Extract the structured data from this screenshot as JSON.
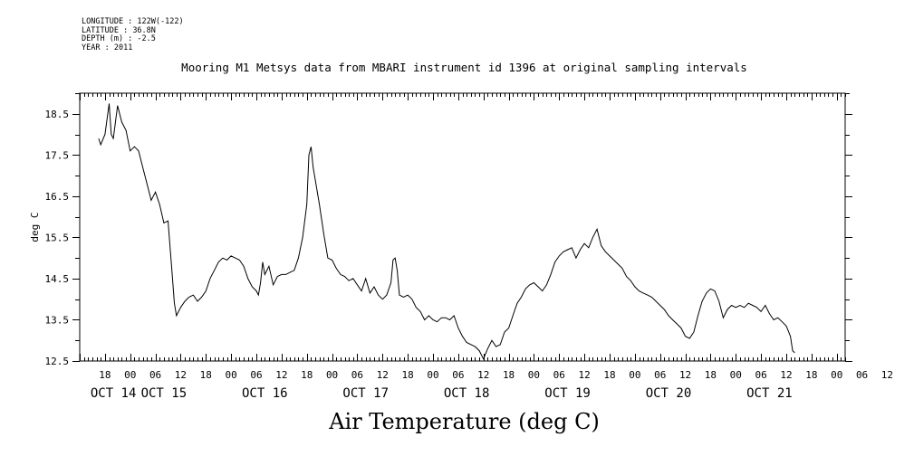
{
  "metadata": [
    {
      "label": "LONGITUDE",
      "value": "122W(-122)"
    },
    {
      "label": "LATITUDE",
      "value": "36.8N"
    },
    {
      "label": "DEPTH (m)",
      "value": "-2.5"
    },
    {
      "label": "YEAR",
      "value": "2011"
    }
  ],
  "footer_title": "Air Temperature (deg C)",
  "chart_data": {
    "type": "line",
    "title": "Mooring M1 Metsys data from MBARI instrument id 1396 at original sampling intervals",
    "xlabel": "",
    "ylabel": "deg C",
    "ylim": [
      12.5,
      19.0
    ],
    "xlim_hours": [
      0,
      182
    ],
    "y_ticks": [
      12.5,
      13.5,
      14.5,
      15.5,
      16.5,
      17.5,
      18.5
    ],
    "y_tick_labels": [
      "12.5",
      "13.5",
      "14.5",
      "15.5",
      "16.5",
      "17.5",
      "18.5"
    ],
    "x_hour_labels": [
      "18",
      "00",
      "06",
      "12",
      "18",
      "00",
      "06",
      "12",
      "18",
      "00",
      "06",
      "12",
      "18",
      "00",
      "06",
      "12",
      "18",
      "00",
      "06",
      "12",
      "18",
      "00",
      "06",
      "12",
      "18",
      "00",
      "06",
      "12",
      "18",
      "00",
      "06",
      "12"
    ],
    "x_day_labels": [
      "OCT 14",
      "OCT 15",
      "OCT 16",
      "OCT 17",
      "OCT 18",
      "OCT 19",
      "OCT 20",
      "OCT 21"
    ],
    "grid": false,
    "series": [
      {
        "points": [
          [
            "2011-10-14 16:30",
            17.9
          ],
          [
            "2011-10-14 17:00",
            17.75
          ],
          [
            "2011-10-14 18:00",
            18.0
          ],
          [
            "2011-10-14 19:00",
            18.75
          ],
          [
            "2011-10-14 19:30",
            18.0
          ],
          [
            "2011-10-14 20:00",
            17.9
          ],
          [
            "2011-10-14 21:00",
            18.7
          ],
          [
            "2011-10-14 22:00",
            18.3
          ],
          [
            "2011-10-14 23:00",
            18.1
          ],
          [
            "2011-10-15 00:00",
            17.6
          ],
          [
            "2011-10-15 01:00",
            17.7
          ],
          [
            "2011-10-15 02:00",
            17.6
          ],
          [
            "2011-10-15 03:00",
            17.2
          ],
          [
            "2011-10-15 04:00",
            16.8
          ],
          [
            "2011-10-15 05:00",
            16.4
          ],
          [
            "2011-10-15 06:00",
            16.6
          ],
          [
            "2011-10-15 07:00",
            16.3
          ],
          [
            "2011-10-15 08:00",
            15.85
          ],
          [
            "2011-10-15 09:00",
            15.9
          ],
          [
            "2011-10-15 10:00",
            14.6
          ],
          [
            "2011-10-15 10:30",
            13.9
          ],
          [
            "2011-10-15 11:00",
            13.6
          ],
          [
            "2011-10-15 12:00",
            13.8
          ],
          [
            "2011-10-15 13:00",
            13.95
          ],
          [
            "2011-10-15 14:00",
            14.05
          ],
          [
            "2011-10-15 15:00",
            14.1
          ],
          [
            "2011-10-15 16:00",
            13.95
          ],
          [
            "2011-10-15 17:00",
            14.05
          ],
          [
            "2011-10-15 18:00",
            14.2
          ],
          [
            "2011-10-15 19:00",
            14.5
          ],
          [
            "2011-10-15 20:00",
            14.7
          ],
          [
            "2011-10-15 21:00",
            14.9
          ],
          [
            "2011-10-15 22:00",
            15.0
          ],
          [
            "2011-10-15 23:00",
            14.95
          ],
          [
            "2011-10-16 00:00",
            15.05
          ],
          [
            "2011-10-16 01:00",
            15.0
          ],
          [
            "2011-10-16 02:00",
            14.95
          ],
          [
            "2011-10-16 03:00",
            14.8
          ],
          [
            "2011-10-16 04:00",
            14.5
          ],
          [
            "2011-10-16 05:00",
            14.3
          ],
          [
            "2011-10-16 06:00",
            14.2
          ],
          [
            "2011-10-16 06:30",
            14.1
          ],
          [
            "2011-10-16 07:00",
            14.4
          ],
          [
            "2011-10-16 07:30",
            14.9
          ],
          [
            "2011-10-16 08:00",
            14.6
          ],
          [
            "2011-10-16 09:00",
            14.8
          ],
          [
            "2011-10-16 10:00",
            14.35
          ],
          [
            "2011-10-16 11:00",
            14.55
          ],
          [
            "2011-10-16 12:00",
            14.6
          ],
          [
            "2011-10-16 13:00",
            14.6
          ],
          [
            "2011-10-16 14:00",
            14.65
          ],
          [
            "2011-10-16 15:00",
            14.7
          ],
          [
            "2011-10-16 16:00",
            15.0
          ],
          [
            "2011-10-16 17:00",
            15.5
          ],
          [
            "2011-10-16 18:00",
            16.3
          ],
          [
            "2011-10-16 18:30",
            17.5
          ],
          [
            "2011-10-16 19:00",
            17.7
          ],
          [
            "2011-10-16 19:30",
            17.2
          ],
          [
            "2011-10-16 20:00",
            16.9
          ],
          [
            "2011-10-16 21:00",
            16.3
          ],
          [
            "2011-10-16 22:00",
            15.6
          ],
          [
            "2011-10-16 23:00",
            15.0
          ],
          [
            "2011-10-17 00:00",
            14.95
          ],
          [
            "2011-10-17 01:00",
            14.75
          ],
          [
            "2011-10-17 02:00",
            14.6
          ],
          [
            "2011-10-17 03:00",
            14.55
          ],
          [
            "2011-10-17 04:00",
            14.45
          ],
          [
            "2011-10-17 05:00",
            14.5
          ],
          [
            "2011-10-17 06:00",
            14.35
          ],
          [
            "2011-10-17 07:00",
            14.2
          ],
          [
            "2011-10-17 08:00",
            14.5
          ],
          [
            "2011-10-17 09:00",
            14.15
          ],
          [
            "2011-10-17 10:00",
            14.3
          ],
          [
            "2011-10-17 11:00",
            14.1
          ],
          [
            "2011-10-17 12:00",
            14.0
          ],
          [
            "2011-10-17 13:00",
            14.1
          ],
          [
            "2011-10-17 14:00",
            14.4
          ],
          [
            "2011-10-17 14:30",
            14.95
          ],
          [
            "2011-10-17 15:00",
            15.0
          ],
          [
            "2011-10-17 15:30",
            14.7
          ],
          [
            "2011-10-17 16:00",
            14.1
          ],
          [
            "2011-10-17 17:00",
            14.05
          ],
          [
            "2011-10-17 18:00",
            14.1
          ],
          [
            "2011-10-17 19:00",
            14.0
          ],
          [
            "2011-10-17 20:00",
            13.8
          ],
          [
            "2011-10-17 21:00",
            13.7
          ],
          [
            "2011-10-17 22:00",
            13.5
          ],
          [
            "2011-10-17 23:00",
            13.6
          ],
          [
            "2011-10-18 00:00",
            13.5
          ],
          [
            "2011-10-18 01:00",
            13.45
          ],
          [
            "2011-10-18 02:00",
            13.55
          ],
          [
            "2011-10-18 03:00",
            13.55
          ],
          [
            "2011-10-18 04:00",
            13.5
          ],
          [
            "2011-10-18 05:00",
            13.6
          ],
          [
            "2011-10-18 06:00",
            13.3
          ],
          [
            "2011-10-18 07:00",
            13.1
          ],
          [
            "2011-10-18 08:00",
            12.95
          ],
          [
            "2011-10-18 09:00",
            12.9
          ],
          [
            "2011-10-18 10:00",
            12.85
          ],
          [
            "2011-10-18 11:00",
            12.75
          ],
          [
            "2011-10-18 12:00",
            12.55
          ],
          [
            "2011-10-18 13:00",
            12.8
          ],
          [
            "2011-10-18 14:00",
            13.0
          ],
          [
            "2011-10-18 15:00",
            12.85
          ],
          [
            "2011-10-18 16:00",
            12.9
          ],
          [
            "2011-10-18 17:00",
            13.2
          ],
          [
            "2011-10-18 18:00",
            13.3
          ],
          [
            "2011-10-18 19:00",
            13.6
          ],
          [
            "2011-10-18 20:00",
            13.9
          ],
          [
            "2011-10-18 21:00",
            14.05
          ],
          [
            "2011-10-18 22:00",
            14.25
          ],
          [
            "2011-10-18 23:00",
            14.35
          ],
          [
            "2011-10-19 00:00",
            14.4
          ],
          [
            "2011-10-19 01:00",
            14.3
          ],
          [
            "2011-10-19 02:00",
            14.2
          ],
          [
            "2011-10-19 03:00",
            14.35
          ],
          [
            "2011-10-19 04:00",
            14.6
          ],
          [
            "2011-10-19 05:00",
            14.9
          ],
          [
            "2011-10-19 06:00",
            15.05
          ],
          [
            "2011-10-19 07:00",
            15.15
          ],
          [
            "2011-10-19 08:00",
            15.2
          ],
          [
            "2011-10-19 09:00",
            15.25
          ],
          [
            "2011-10-19 10:00",
            15.0
          ],
          [
            "2011-10-19 11:00",
            15.2
          ],
          [
            "2011-10-19 12:00",
            15.35
          ],
          [
            "2011-10-19 13:00",
            15.25
          ],
          [
            "2011-10-19 14:00",
            15.5
          ],
          [
            "2011-10-19 15:00",
            15.7
          ],
          [
            "2011-10-19 16:00",
            15.3
          ],
          [
            "2011-10-19 17:00",
            15.15
          ],
          [
            "2011-10-19 18:00",
            15.05
          ],
          [
            "2011-10-19 19:00",
            14.95
          ],
          [
            "2011-10-19 20:00",
            14.85
          ],
          [
            "2011-10-19 21:00",
            14.75
          ],
          [
            "2011-10-19 22:00",
            14.55
          ],
          [
            "2011-10-19 23:00",
            14.45
          ],
          [
            "2011-10-20 00:00",
            14.3
          ],
          [
            "2011-10-20 01:00",
            14.2
          ],
          [
            "2011-10-20 02:00",
            14.15
          ],
          [
            "2011-10-20 03:00",
            14.1
          ],
          [
            "2011-10-20 04:00",
            14.05
          ],
          [
            "2011-10-20 05:00",
            13.95
          ],
          [
            "2011-10-20 06:00",
            13.85
          ],
          [
            "2011-10-20 07:00",
            13.75
          ],
          [
            "2011-10-20 08:00",
            13.6
          ],
          [
            "2011-10-20 09:00",
            13.5
          ],
          [
            "2011-10-20 10:00",
            13.4
          ],
          [
            "2011-10-20 11:00",
            13.3
          ],
          [
            "2011-10-20 12:00",
            13.1
          ],
          [
            "2011-10-20 13:00",
            13.05
          ],
          [
            "2011-10-20 14:00",
            13.2
          ],
          [
            "2011-10-20 15:00",
            13.6
          ],
          [
            "2011-10-20 16:00",
            13.95
          ],
          [
            "2011-10-20 17:00",
            14.15
          ],
          [
            "2011-10-20 18:00",
            14.25
          ],
          [
            "2011-10-20 19:00",
            14.2
          ],
          [
            "2011-10-20 20:00",
            13.95
          ],
          [
            "2011-10-20 21:00",
            13.55
          ],
          [
            "2011-10-20 22:00",
            13.75
          ],
          [
            "2011-10-20 23:00",
            13.85
          ],
          [
            "2011-10-21 00:00",
            13.8
          ],
          [
            "2011-10-21 01:00",
            13.85
          ],
          [
            "2011-10-21 02:00",
            13.8
          ],
          [
            "2011-10-21 03:00",
            13.9
          ],
          [
            "2011-10-21 04:00",
            13.85
          ],
          [
            "2011-10-21 05:00",
            13.8
          ],
          [
            "2011-10-21 06:00",
            13.7
          ],
          [
            "2011-10-21 07:00",
            13.85
          ],
          [
            "2011-10-21 08:00",
            13.65
          ],
          [
            "2011-10-21 09:00",
            13.5
          ],
          [
            "2011-10-21 10:00",
            13.55
          ],
          [
            "2011-10-21 11:00",
            13.45
          ],
          [
            "2011-10-21 12:00",
            13.35
          ],
          [
            "2011-10-21 13:00",
            13.1
          ],
          [
            "2011-10-21 13:30",
            12.75
          ],
          [
            "2011-10-21 14:00",
            12.7
          ]
        ]
      }
    ]
  }
}
